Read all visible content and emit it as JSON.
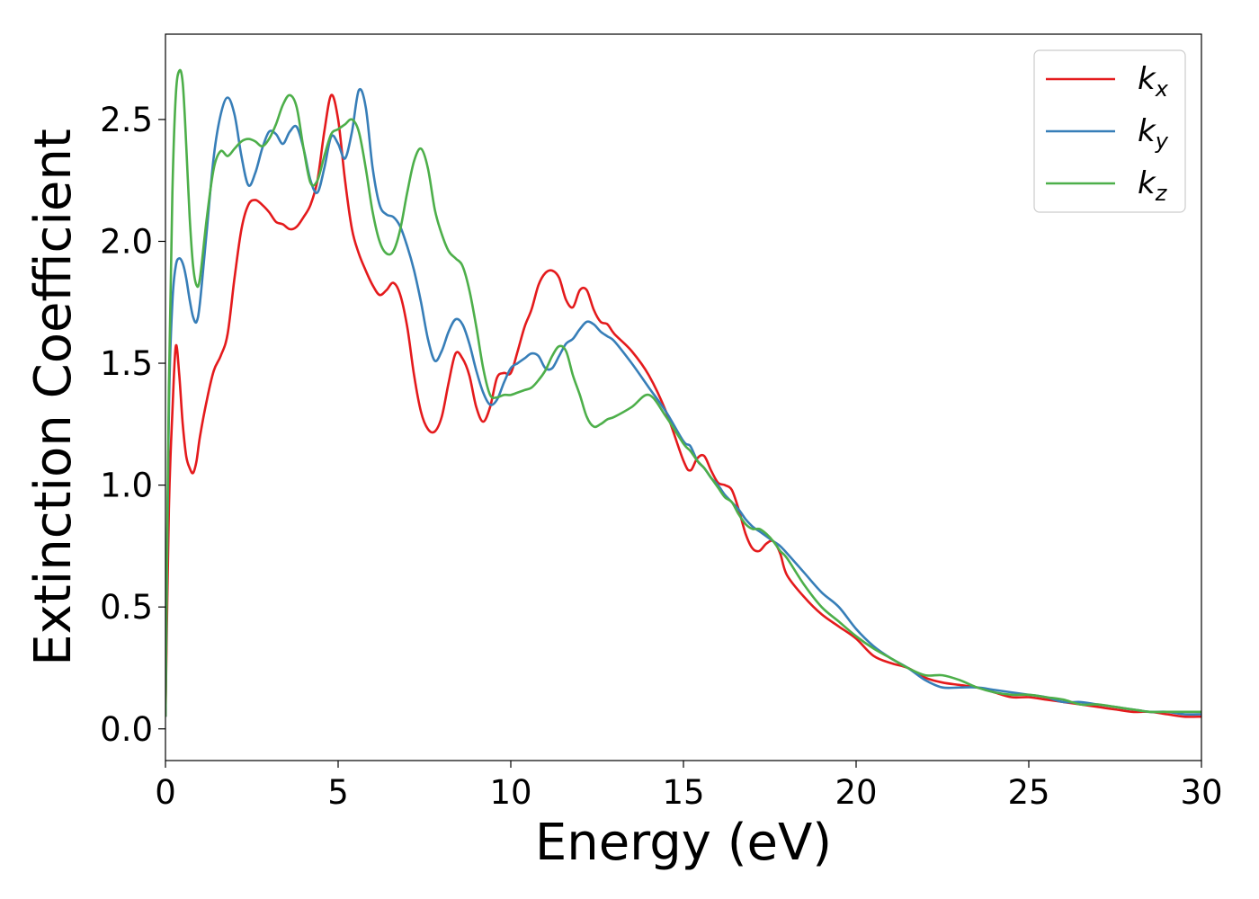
{
  "chart_data": {
    "type": "line",
    "title": "",
    "xlabel": "Energy (eV)",
    "ylabel": "Extinction Coefficient",
    "xlim": [
      0,
      30
    ],
    "ylim": [
      -0.13,
      2.85
    ],
    "xticks": [
      0,
      5,
      10,
      15,
      20,
      25,
      30
    ],
    "yticks": [
      0.0,
      0.5,
      1.0,
      1.5,
      2.0,
      2.5
    ],
    "xtick_labels": [
      "0",
      "5",
      "10",
      "15",
      "20",
      "25",
      "30"
    ],
    "ytick_labels": [
      "0.0",
      "0.5",
      "1.0",
      "1.5",
      "2.0",
      "2.5"
    ],
    "grid": false,
    "legend_position": "top-right",
    "series": [
      {
        "name": "k_x",
        "label_main": "k",
        "label_sub": "x",
        "color": "#e41a1c",
        "x": [
          0,
          0.1,
          0.2,
          0.3,
          0.4,
          0.5,
          0.6,
          0.7,
          0.8,
          0.9,
          1.0,
          1.2,
          1.4,
          1.6,
          1.8,
          2.0,
          2.2,
          2.4,
          2.6,
          2.8,
          3.0,
          3.2,
          3.4,
          3.6,
          3.8,
          4.0,
          4.2,
          4.4,
          4.6,
          4.8,
          5.0,
          5.2,
          5.4,
          5.6,
          5.8,
          6.0,
          6.2,
          6.4,
          6.6,
          6.8,
          7.0,
          7.2,
          7.4,
          7.6,
          7.8,
          8.0,
          8.2,
          8.4,
          8.6,
          8.8,
          9.0,
          9.2,
          9.4,
          9.6,
          9.8,
          10.0,
          10.2,
          10.4,
          10.6,
          10.8,
          11.0,
          11.2,
          11.4,
          11.6,
          11.8,
          12.0,
          12.2,
          12.4,
          12.6,
          12.8,
          13.0,
          13.5,
          14.0,
          14.5,
          15.0,
          15.2,
          15.4,
          15.6,
          15.8,
          16.0,
          16.2,
          16.4,
          16.6,
          16.8,
          17.0,
          17.2,
          17.4,
          17.6,
          17.8,
          18.0,
          18.5,
          19.0,
          19.5,
          20.0,
          20.5,
          21.0,
          21.5,
          22.0,
          22.5,
          23.0,
          23.5,
          24.0,
          24.5,
          25.0,
          25.5,
          26.0,
          26.5,
          27.0,
          27.5,
          28.0,
          28.5,
          29.0,
          29.5,
          30.0
        ],
        "y": [
          0.05,
          0.9,
          1.3,
          1.57,
          1.45,
          1.25,
          1.12,
          1.07,
          1.05,
          1.1,
          1.2,
          1.35,
          1.47,
          1.53,
          1.62,
          1.85,
          2.05,
          2.15,
          2.17,
          2.15,
          2.12,
          2.08,
          2.07,
          2.05,
          2.06,
          2.1,
          2.15,
          2.25,
          2.45,
          2.6,
          2.5,
          2.25,
          2.05,
          1.95,
          1.88,
          1.82,
          1.78,
          1.8,
          1.83,
          1.78,
          1.65,
          1.45,
          1.3,
          1.23,
          1.22,
          1.28,
          1.42,
          1.54,
          1.52,
          1.45,
          1.32,
          1.26,
          1.32,
          1.44,
          1.46,
          1.46,
          1.55,
          1.65,
          1.72,
          1.82,
          1.87,
          1.88,
          1.85,
          1.76,
          1.73,
          1.8,
          1.8,
          1.72,
          1.67,
          1.66,
          1.62,
          1.55,
          1.45,
          1.3,
          1.1,
          1.06,
          1.11,
          1.12,
          1.06,
          1.01,
          1.0,
          0.98,
          0.9,
          0.8,
          0.74,
          0.73,
          0.76,
          0.77,
          0.72,
          0.63,
          0.54,
          0.47,
          0.42,
          0.37,
          0.3,
          0.27,
          0.25,
          0.21,
          0.19,
          0.18,
          0.17,
          0.15,
          0.13,
          0.13,
          0.12,
          0.11,
          0.1,
          0.09,
          0.08,
          0.07,
          0.07,
          0.06,
          0.05,
          0.05
        ]
      },
      {
        "name": "k_y",
        "label_main": "k",
        "label_sub": "y",
        "color": "#377eb8",
        "x": [
          0,
          0.1,
          0.2,
          0.3,
          0.4,
          0.5,
          0.6,
          0.7,
          0.8,
          0.9,
          1.0,
          1.2,
          1.4,
          1.6,
          1.8,
          2.0,
          2.2,
          2.4,
          2.6,
          2.8,
          3.0,
          3.2,
          3.4,
          3.6,
          3.8,
          4.0,
          4.2,
          4.4,
          4.6,
          4.8,
          5.0,
          5.2,
          5.4,
          5.6,
          5.8,
          6.0,
          6.2,
          6.4,
          6.6,
          6.8,
          7.0,
          7.2,
          7.4,
          7.6,
          7.8,
          8.0,
          8.2,
          8.4,
          8.6,
          8.8,
          9.0,
          9.2,
          9.4,
          9.6,
          9.8,
          10.0,
          10.2,
          10.4,
          10.6,
          10.8,
          11.0,
          11.2,
          11.4,
          11.6,
          11.8,
          12.0,
          12.2,
          12.4,
          12.6,
          12.8,
          13.0,
          13.5,
          14.0,
          14.5,
          15.0,
          15.2,
          15.4,
          15.6,
          15.8,
          16.0,
          16.2,
          16.4,
          16.6,
          16.8,
          17.0,
          17.2,
          17.4,
          17.6,
          17.8,
          18.0,
          18.5,
          19.0,
          19.5,
          20.0,
          20.5,
          21.0,
          21.5,
          22.0,
          22.5,
          23.0,
          23.5,
          24.0,
          24.5,
          25.0,
          25.5,
          26.0,
          26.5,
          27.0,
          27.5,
          28.0,
          28.5,
          29.0,
          29.5,
          30.0
        ],
        "y": [
          0.05,
          1.3,
          1.75,
          1.9,
          1.93,
          1.91,
          1.85,
          1.76,
          1.69,
          1.67,
          1.75,
          2.05,
          2.35,
          2.52,
          2.59,
          2.52,
          2.35,
          2.23,
          2.28,
          2.38,
          2.45,
          2.44,
          2.4,
          2.45,
          2.47,
          2.38,
          2.25,
          2.2,
          2.3,
          2.43,
          2.4,
          2.34,
          2.45,
          2.62,
          2.55,
          2.3,
          2.15,
          2.11,
          2.1,
          2.06,
          1.98,
          1.88,
          1.75,
          1.6,
          1.51,
          1.55,
          1.63,
          1.68,
          1.66,
          1.58,
          1.47,
          1.38,
          1.33,
          1.35,
          1.42,
          1.48,
          1.5,
          1.52,
          1.54,
          1.53,
          1.48,
          1.48,
          1.53,
          1.58,
          1.6,
          1.64,
          1.67,
          1.66,
          1.63,
          1.61,
          1.59,
          1.5,
          1.4,
          1.3,
          1.18,
          1.16,
          1.1,
          1.07,
          1.03,
          1.0,
          0.96,
          0.93,
          0.9,
          0.86,
          0.83,
          0.81,
          0.79,
          0.77,
          0.75,
          0.72,
          0.64,
          0.56,
          0.5,
          0.41,
          0.34,
          0.29,
          0.25,
          0.2,
          0.17,
          0.17,
          0.17,
          0.16,
          0.15,
          0.14,
          0.13,
          0.11,
          0.11,
          0.1,
          0.09,
          0.08,
          0.07,
          0.07,
          0.06,
          0.06
        ]
      },
      {
        "name": "k_z",
        "label_main": "k",
        "label_sub": "z",
        "color": "#4daf4a",
        "x": [
          0,
          0.1,
          0.2,
          0.3,
          0.4,
          0.5,
          0.6,
          0.7,
          0.8,
          0.9,
          1.0,
          1.2,
          1.4,
          1.6,
          1.8,
          2.0,
          2.2,
          2.4,
          2.6,
          2.8,
          3.0,
          3.2,
          3.4,
          3.6,
          3.8,
          4.0,
          4.2,
          4.4,
          4.6,
          4.8,
          5.0,
          5.2,
          5.4,
          5.6,
          5.8,
          6.0,
          6.2,
          6.4,
          6.6,
          6.8,
          7.0,
          7.2,
          7.4,
          7.6,
          7.8,
          8.0,
          8.2,
          8.4,
          8.6,
          8.8,
          9.0,
          9.2,
          9.4,
          9.6,
          9.8,
          10.0,
          10.2,
          10.4,
          10.6,
          10.8,
          11.0,
          11.2,
          11.4,
          11.6,
          11.8,
          12.0,
          12.2,
          12.4,
          12.6,
          12.8,
          13.0,
          13.5,
          14.0,
          14.5,
          15.0,
          15.2,
          15.4,
          15.6,
          15.8,
          16.0,
          16.2,
          16.4,
          16.6,
          16.8,
          17.0,
          17.2,
          17.4,
          17.6,
          17.8,
          18.0,
          18.5,
          19.0,
          19.5,
          20.0,
          20.5,
          21.0,
          21.5,
          22.0,
          22.5,
          23.0,
          23.5,
          24.0,
          24.5,
          25.0,
          25.5,
          26.0,
          26.5,
          27.0,
          27.5,
          28.0,
          28.5,
          29.0,
          29.5,
          30.0
        ],
        "y": [
          0.05,
          1.4,
          2.2,
          2.6,
          2.7,
          2.65,
          2.4,
          2.1,
          1.9,
          1.82,
          1.85,
          2.1,
          2.3,
          2.37,
          2.35,
          2.38,
          2.41,
          2.42,
          2.41,
          2.39,
          2.42,
          2.48,
          2.56,
          2.6,
          2.55,
          2.38,
          2.24,
          2.25,
          2.35,
          2.44,
          2.46,
          2.48,
          2.5,
          2.45,
          2.3,
          2.12,
          2.0,
          1.95,
          1.96,
          2.05,
          2.2,
          2.33,
          2.38,
          2.3,
          2.13,
          2.03,
          1.96,
          1.93,
          1.9,
          1.8,
          1.65,
          1.48,
          1.37,
          1.36,
          1.37,
          1.37,
          1.38,
          1.39,
          1.4,
          1.43,
          1.47,
          1.53,
          1.57,
          1.55,
          1.45,
          1.37,
          1.28,
          1.24,
          1.25,
          1.27,
          1.28,
          1.32,
          1.37,
          1.28,
          1.17,
          1.14,
          1.1,
          1.07,
          1.03,
          0.99,
          0.95,
          0.93,
          0.88,
          0.84,
          0.82,
          0.82,
          0.8,
          0.77,
          0.73,
          0.7,
          0.59,
          0.5,
          0.44,
          0.38,
          0.33,
          0.29,
          0.25,
          0.22,
          0.22,
          0.2,
          0.17,
          0.15,
          0.14,
          0.14,
          0.13,
          0.12,
          0.1,
          0.1,
          0.09,
          0.08,
          0.07,
          0.07,
          0.07,
          0.07
        ]
      }
    ]
  }
}
